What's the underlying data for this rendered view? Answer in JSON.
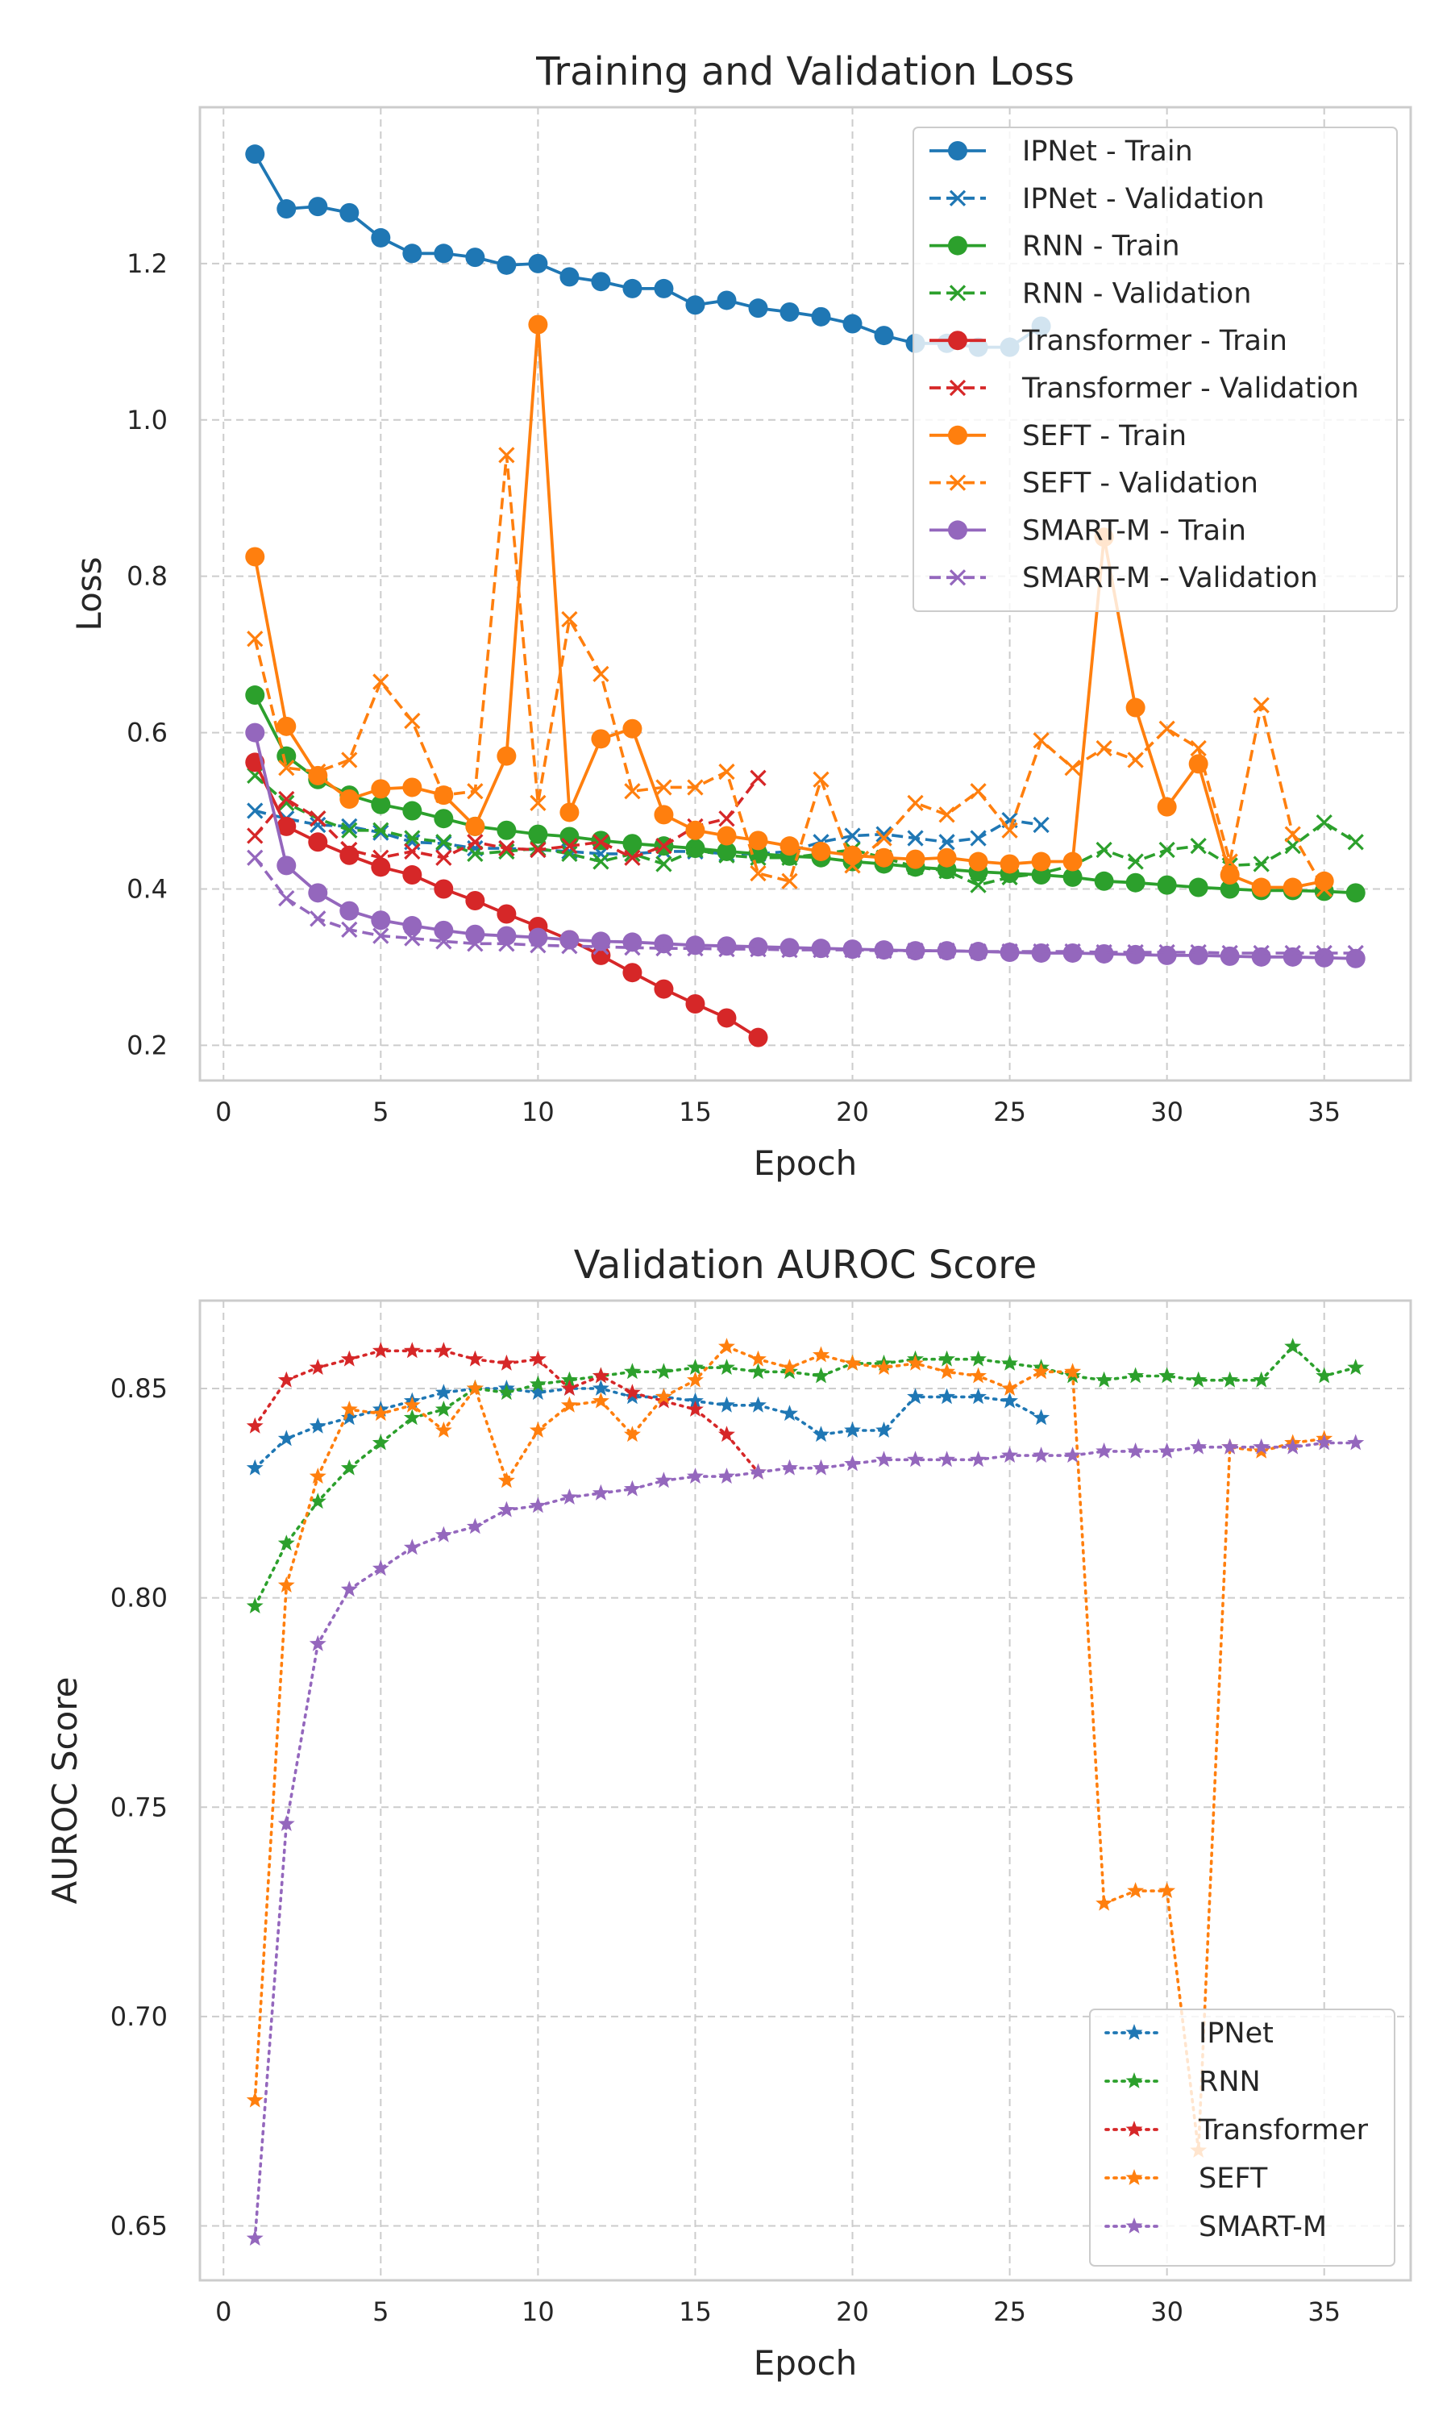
{
  "figure": {
    "background": "#ffffff"
  },
  "chart_data": [
    {
      "type": "line",
      "title": "Training and Validation Loss",
      "xlabel": "Epoch",
      "ylabel": "Loss",
      "xlim": [
        -0.75,
        37.75
      ],
      "ylim": [
        0.155,
        1.4
      ],
      "xticks": [
        0,
        5,
        10,
        15,
        20,
        25,
        30,
        35
      ],
      "yticks": [
        0.2,
        0.4,
        0.6,
        0.8,
        1.0,
        1.2
      ],
      "ytick_labels": [
        "0.2",
        "0.4",
        "0.6",
        "0.8",
        "1.0",
        "1.2"
      ],
      "grid": true,
      "legend_position": "top-right",
      "series": [
        {
          "name": "IPNet - Train",
          "color": "#1f77b4",
          "style": "solid",
          "marker": "circle",
          "x": [
            1,
            2,
            3,
            4,
            5,
            6,
            7,
            8,
            9,
            10,
            11,
            12,
            13,
            14,
            15,
            16,
            17,
            18,
            19,
            20,
            21,
            22,
            23,
            24,
            25,
            26
          ],
          "y": [
            1.34,
            1.27,
            1.273,
            1.265,
            1.233,
            1.213,
            1.213,
            1.208,
            1.198,
            1.2,
            1.183,
            1.177,
            1.168,
            1.168,
            1.147,
            1.153,
            1.143,
            1.138,
            1.132,
            1.123,
            1.108,
            1.098,
            1.098,
            1.093,
            1.093,
            1.12
          ]
        },
        {
          "name": "IPNet - Validation",
          "color": "#1f77b4",
          "style": "dashed",
          "marker": "x",
          "x": [
            1,
            2,
            3,
            4,
            5,
            6,
            7,
            8,
            9,
            10,
            11,
            12,
            13,
            14,
            15,
            16,
            17,
            18,
            19,
            20,
            21,
            22,
            23,
            24,
            25,
            26
          ],
          "y": [
            0.5,
            0.49,
            0.482,
            0.48,
            0.472,
            0.46,
            0.458,
            0.452,
            0.452,
            0.45,
            0.448,
            0.445,
            0.445,
            0.448,
            0.448,
            0.445,
            0.445,
            0.448,
            0.46,
            0.468,
            0.47,
            0.465,
            0.46,
            0.465,
            0.488,
            0.482
          ]
        },
        {
          "name": "RNN - Train",
          "color": "#2ca02c",
          "style": "solid",
          "marker": "circle",
          "x": [
            1,
            2,
            3,
            4,
            5,
            6,
            7,
            8,
            9,
            10,
            11,
            12,
            13,
            14,
            15,
            16,
            17,
            18,
            19,
            20,
            21,
            22,
            23,
            24,
            25,
            26,
            27,
            28,
            29,
            30,
            31,
            32,
            33,
            34,
            35,
            36
          ],
          "y": [
            0.648,
            0.57,
            0.54,
            0.52,
            0.508,
            0.5,
            0.49,
            0.48,
            0.475,
            0.47,
            0.467,
            0.462,
            0.458,
            0.455,
            0.452,
            0.448,
            0.445,
            0.442,
            0.44,
            0.435,
            0.432,
            0.428,
            0.425,
            0.422,
            0.42,
            0.418,
            0.415,
            0.41,
            0.408,
            0.405,
            0.402,
            0.4,
            0.398,
            0.398,
            0.397,
            0.395
          ]
        },
        {
          "name": "RNN - Validation",
          "color": "#2ca02c",
          "style": "dashed",
          "marker": "x",
          "x": [
            1,
            2,
            3,
            4,
            5,
            6,
            7,
            8,
            9,
            10,
            11,
            12,
            13,
            14,
            15,
            16,
            17,
            18,
            19,
            20,
            21,
            22,
            23,
            24,
            25,
            26,
            27,
            28,
            29,
            30,
            31,
            32,
            33,
            34,
            35,
            36
          ],
          "y": [
            0.545,
            0.51,
            0.49,
            0.475,
            0.475,
            0.465,
            0.46,
            0.445,
            0.448,
            0.452,
            0.445,
            0.435,
            0.445,
            0.432,
            0.45,
            0.443,
            0.44,
            0.44,
            0.445,
            0.45,
            0.44,
            0.428,
            0.423,
            0.405,
            0.415,
            0.42,
            0.43,
            0.45,
            0.435,
            0.45,
            0.455,
            0.43,
            0.432,
            0.455,
            0.485,
            0.46
          ]
        },
        {
          "name": "Transformer - Train",
          "color": "#d62728",
          "style": "solid",
          "marker": "circle",
          "x": [
            1,
            2,
            3,
            4,
            5,
            6,
            7,
            8,
            9,
            10,
            11,
            12,
            13,
            14,
            15,
            16,
            17
          ],
          "y": [
            0.562,
            0.48,
            0.46,
            0.443,
            0.428,
            0.418,
            0.4,
            0.385,
            0.368,
            0.352,
            0.335,
            0.315,
            0.293,
            0.272,
            0.253,
            0.235,
            0.21
          ]
        },
        {
          "name": "Transformer - Validation",
          "color": "#d62728",
          "style": "dashed",
          "marker": "x",
          "x": [
            1,
            2,
            3,
            4,
            5,
            6,
            7,
            8,
            9,
            10,
            11,
            12,
            13,
            14,
            15,
            16,
            17
          ],
          "y": [
            0.468,
            0.515,
            0.49,
            0.45,
            0.44,
            0.448,
            0.44,
            0.46,
            0.452,
            0.45,
            0.455,
            0.46,
            0.44,
            0.455,
            0.48,
            0.49,
            0.542
          ]
        },
        {
          "name": "SEFT - Train",
          "color": "#ff7f0e",
          "style": "solid",
          "marker": "circle",
          "x": [
            1,
            2,
            3,
            4,
            5,
            6,
            7,
            8,
            9,
            10,
            11,
            12,
            13,
            14,
            15,
            16,
            17,
            18,
            19,
            20,
            21,
            22,
            23,
            24,
            25,
            26,
            27,
            28,
            29,
            30,
            31,
            32,
            33,
            34,
            35
          ],
          "y": [
            0.825,
            0.608,
            0.545,
            0.515,
            0.528,
            0.53,
            0.52,
            0.48,
            0.57,
            1.122,
            0.498,
            0.592,
            0.605,
            0.495,
            0.475,
            0.468,
            0.462,
            0.455,
            0.448,
            0.443,
            0.44,
            0.438,
            0.44,
            0.435,
            0.432,
            0.435,
            0.435,
            0.85,
            0.632,
            0.505,
            0.56,
            0.418,
            0.402,
            0.402,
            0.41
          ]
        },
        {
          "name": "SEFT - Validation",
          "color": "#ff7f0e",
          "style": "dashed",
          "marker": "x",
          "x": [
            1,
            2,
            3,
            4,
            5,
            6,
            7,
            8,
            9,
            10,
            11,
            12,
            13,
            14,
            15,
            16,
            17,
            18,
            19,
            20,
            21,
            22,
            23,
            24,
            25,
            26,
            27,
            28,
            29,
            30,
            31,
            32,
            33,
            34,
            35
          ],
          "y": [
            0.72,
            0.555,
            0.55,
            0.565,
            0.665,
            0.615,
            0.52,
            0.525,
            0.955,
            0.51,
            0.745,
            0.675,
            0.525,
            0.53,
            0.53,
            0.55,
            0.42,
            0.41,
            0.54,
            0.43,
            0.465,
            0.51,
            0.495,
            0.525,
            0.475,
            0.59,
            0.555,
            0.58,
            0.565,
            0.605,
            0.58,
            0.435,
            0.635,
            0.47,
            0.4
          ]
        },
        {
          "name": "SMART-M - Train",
          "color": "#9467bd",
          "style": "solid",
          "marker": "circle",
          "x": [
            1,
            2,
            3,
            4,
            5,
            6,
            7,
            8,
            9,
            10,
            11,
            12,
            13,
            14,
            15,
            16,
            17,
            18,
            19,
            20,
            21,
            22,
            23,
            24,
            25,
            26,
            27,
            28,
            29,
            30,
            31,
            32,
            33,
            34,
            35,
            36
          ],
          "y": [
            0.6,
            0.43,
            0.395,
            0.372,
            0.36,
            0.353,
            0.347,
            0.342,
            0.34,
            0.338,
            0.335,
            0.333,
            0.332,
            0.33,
            0.328,
            0.327,
            0.326,
            0.325,
            0.324,
            0.323,
            0.322,
            0.321,
            0.321,
            0.32,
            0.319,
            0.318,
            0.318,
            0.317,
            0.316,
            0.315,
            0.315,
            0.314,
            0.313,
            0.313,
            0.312,
            0.311
          ]
        },
        {
          "name": "SMART-M - Validation",
          "color": "#9467bd",
          "style": "dashed",
          "marker": "x",
          "x": [
            1,
            2,
            3,
            4,
            5,
            6,
            7,
            8,
            9,
            10,
            11,
            12,
            13,
            14,
            15,
            16,
            17,
            18,
            19,
            20,
            21,
            22,
            23,
            24,
            25,
            26,
            27,
            28,
            29,
            30,
            31,
            32,
            33,
            34,
            35,
            36
          ],
          "y": [
            0.44,
            0.388,
            0.362,
            0.348,
            0.34,
            0.337,
            0.333,
            0.33,
            0.33,
            0.328,
            0.327,
            0.326,
            0.325,
            0.324,
            0.324,
            0.323,
            0.323,
            0.322,
            0.322,
            0.322,
            0.321,
            0.321,
            0.321,
            0.32,
            0.32,
            0.32,
            0.32,
            0.319,
            0.319,
            0.319,
            0.319,
            0.318,
            0.318,
            0.318,
            0.318,
            0.318
          ]
        }
      ]
    },
    {
      "type": "line",
      "title": "Validation AUROC Score",
      "xlabel": "Epoch",
      "ylabel": "AUROC Score",
      "xlim": [
        -0.75,
        37.75
      ],
      "ylim": [
        0.637,
        0.871
      ],
      "xticks": [
        0,
        5,
        10,
        15,
        20,
        25,
        30,
        35
      ],
      "yticks": [
        0.65,
        0.7,
        0.75,
        0.8,
        0.85
      ],
      "ytick_labels": [
        "0.65",
        "0.70",
        "0.75",
        "0.80",
        "0.85"
      ],
      "grid": true,
      "legend_position": "bottom-right",
      "series": [
        {
          "name": "IPNet",
          "color": "#1f77b4",
          "style": "dotted",
          "marker": "star",
          "x": [
            1,
            2,
            3,
            4,
            5,
            6,
            7,
            8,
            9,
            10,
            11,
            12,
            13,
            14,
            15,
            16,
            17,
            18,
            19,
            20,
            21,
            22,
            23,
            24,
            25,
            26
          ],
          "y": [
            0.831,
            0.838,
            0.841,
            0.843,
            0.845,
            0.847,
            0.849,
            0.85,
            0.85,
            0.849,
            0.85,
            0.85,
            0.848,
            0.848,
            0.847,
            0.846,
            0.846,
            0.844,
            0.839,
            0.84,
            0.84,
            0.848,
            0.848,
            0.848,
            0.847,
            0.843
          ]
        },
        {
          "name": "RNN",
          "color": "#2ca02c",
          "style": "dotted",
          "marker": "star",
          "x": [
            1,
            2,
            3,
            4,
            5,
            6,
            7,
            8,
            9,
            10,
            11,
            12,
            13,
            14,
            15,
            16,
            17,
            18,
            19,
            20,
            21,
            22,
            23,
            24,
            25,
            26,
            27,
            28,
            29,
            30,
            31,
            32,
            33,
            34,
            35,
            36
          ],
          "y": [
            0.798,
            0.813,
            0.823,
            0.831,
            0.837,
            0.843,
            0.845,
            0.85,
            0.849,
            0.851,
            0.852,
            0.853,
            0.854,
            0.854,
            0.855,
            0.855,
            0.854,
            0.854,
            0.853,
            0.856,
            0.856,
            0.857,
            0.857,
            0.857,
            0.856,
            0.855,
            0.853,
            0.852,
            0.853,
            0.853,
            0.852,
            0.852,
            0.852,
            0.86,
            0.853,
            0.855
          ]
        },
        {
          "name": "Transformer",
          "color": "#d62728",
          "style": "dotted",
          "marker": "star",
          "x": [
            1,
            2,
            3,
            4,
            5,
            6,
            7,
            8,
            9,
            10,
            11,
            12,
            13,
            14,
            15,
            16,
            17
          ],
          "y": [
            0.841,
            0.852,
            0.855,
            0.857,
            0.859,
            0.859,
            0.859,
            0.857,
            0.856,
            0.857,
            0.85,
            0.853,
            0.849,
            0.847,
            0.845,
            0.839,
            0.83
          ]
        },
        {
          "name": "SEFT",
          "color": "#ff7f0e",
          "style": "dotted",
          "marker": "star",
          "x": [
            1,
            2,
            3,
            4,
            5,
            6,
            7,
            8,
            9,
            10,
            11,
            12,
            13,
            14,
            15,
            16,
            17,
            18,
            19,
            20,
            21,
            22,
            23,
            24,
            25,
            26,
            27,
            28,
            29,
            30,
            31,
            32,
            33,
            34,
            35
          ],
          "y": [
            0.68,
            0.803,
            0.829,
            0.845,
            0.844,
            0.846,
            0.84,
            0.85,
            0.828,
            0.84,
            0.846,
            0.847,
            0.839,
            0.848,
            0.852,
            0.86,
            0.857,
            0.855,
            0.858,
            0.856,
            0.855,
            0.856,
            0.854,
            0.853,
            0.85,
            0.854,
            0.854,
            0.727,
            0.73,
            0.73,
            0.668,
            0.836,
            0.835,
            0.837,
            0.838
          ]
        },
        {
          "name": "SMART-M",
          "color": "#9467bd",
          "style": "dotted",
          "marker": "star",
          "x": [
            1,
            2,
            3,
            4,
            5,
            6,
            7,
            8,
            9,
            10,
            11,
            12,
            13,
            14,
            15,
            16,
            17,
            18,
            19,
            20,
            21,
            22,
            23,
            24,
            25,
            26,
            27,
            28,
            29,
            30,
            31,
            32,
            33,
            34,
            35,
            36
          ],
          "y": [
            0.647,
            0.746,
            0.789,
            0.802,
            0.807,
            0.812,
            0.815,
            0.817,
            0.821,
            0.822,
            0.824,
            0.825,
            0.826,
            0.828,
            0.829,
            0.829,
            0.83,
            0.831,
            0.831,
            0.832,
            0.833,
            0.833,
            0.833,
            0.833,
            0.834,
            0.834,
            0.834,
            0.835,
            0.835,
            0.835,
            0.836,
            0.836,
            0.836,
            0.836,
            0.837,
            0.837
          ]
        }
      ]
    }
  ]
}
